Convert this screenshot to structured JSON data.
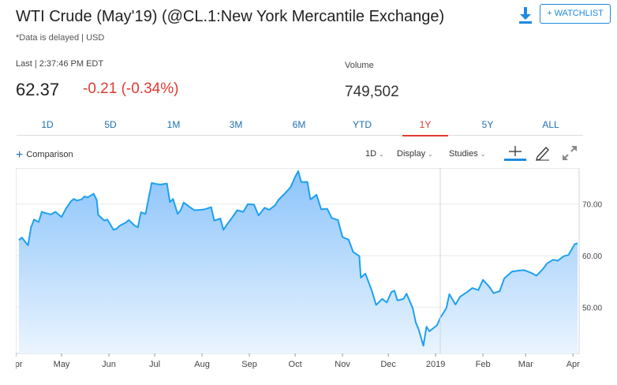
{
  "header": {
    "title": "WTI Crude (May'19) (@CL.1:New York Mercantile Exchange)",
    "subtitle": "*Data is delayed | USD",
    "watchlist_label": "+ WATCHLIST",
    "download_icon": "download-icon"
  },
  "quote": {
    "last_label": "Last | 2:37:46 PM EDT",
    "last_price": "62.37",
    "change": "-0.21 (-0.34%)",
    "volume_label": "Volume",
    "volume": "749,502"
  },
  "colors": {
    "accent": "#1f8ae0",
    "negative": "#e03a33",
    "line": "#1ea0f0",
    "fill_top": "#8cc4fb"
  },
  "range_tabs": [
    "1D",
    "5D",
    "1M",
    "3M",
    "6M",
    "YTD",
    "1Y",
    "5Y",
    "ALL"
  ],
  "active_tab": "1Y",
  "toolbar": {
    "comparison_label": "Comparison",
    "interval_label": "1D",
    "display_label": "Display",
    "studies_label": "Studies",
    "icons": [
      "crosshair-icon",
      "draw-pencil-icon",
      "expand-icon"
    ]
  },
  "chart_data": {
    "type": "area",
    "title": "",
    "xlabel": "",
    "ylabel": "",
    "ylim": [
      41,
      77
    ],
    "yticks": [
      "70.00",
      "60.00",
      "50.00"
    ],
    "ytick_values": [
      70,
      60,
      50
    ],
    "xticks": [
      "Apr",
      "May",
      "Jun",
      "Jul",
      "Aug",
      "Sep",
      "Oct",
      "Nov",
      "Dec",
      "2019",
      "Feb",
      "Mar",
      "Apr"
    ],
    "grid": true,
    "legend": "none",
    "series": [
      {
        "x": [
          "2018-04-03",
          "2018-04-05",
          "2018-04-09",
          "2018-04-11",
          "2018-04-13",
          "2018-04-16",
          "2018-04-18",
          "2018-04-20",
          "2018-04-24",
          "2018-04-27",
          "2018-05-01",
          "2018-05-04",
          "2018-05-07",
          "2018-05-09",
          "2018-05-11",
          "2018-05-14",
          "2018-05-16",
          "2018-05-18",
          "2018-05-22",
          "2018-05-24",
          "2018-05-25",
          "2018-05-29",
          "2018-05-31",
          "2018-06-04",
          "2018-06-06",
          "2018-06-08",
          "2018-06-12",
          "2018-06-14",
          "2018-06-18",
          "2018-06-20",
          "2018-06-22",
          "2018-06-25",
          "2018-06-29",
          "2018-07-02",
          "2018-07-05",
          "2018-07-09",
          "2018-07-11",
          "2018-07-13",
          "2018-07-16",
          "2018-07-18",
          "2018-07-20",
          "2018-07-24",
          "2018-07-27",
          "2018-07-31",
          "2018-08-03",
          "2018-08-07",
          "2018-08-09",
          "2018-08-13",
          "2018-08-15",
          "2018-08-17",
          "2018-08-21",
          "2018-08-24",
          "2018-08-28",
          "2018-08-31",
          "2018-09-04",
          "2018-09-07",
          "2018-09-11",
          "2018-09-14",
          "2018-09-18",
          "2018-09-20",
          "2018-09-25",
          "2018-09-28",
          "2018-10-01",
          "2018-10-03",
          "2018-10-05",
          "2018-10-09",
          "2018-10-11",
          "2018-10-15",
          "2018-10-18",
          "2018-10-22",
          "2018-10-25",
          "2018-10-29",
          "2018-11-01",
          "2018-11-05",
          "2018-11-08",
          "2018-11-12",
          "2018-11-13",
          "2018-11-16",
          "2018-11-20",
          "2018-11-23",
          "2018-11-27",
          "2018-11-30",
          "2018-12-03",
          "2018-12-05",
          "2018-12-07",
          "2018-12-11",
          "2018-12-13",
          "2018-12-17",
          "2018-12-19",
          "2018-12-21",
          "2018-12-24",
          "2018-12-26",
          "2018-12-28",
          "2019-01-02",
          "2019-01-04",
          "2019-01-08",
          "2019-01-10",
          "2019-01-14",
          "2019-01-17",
          "2019-01-22",
          "2019-01-25",
          "2019-01-29",
          "2019-02-01",
          "2019-02-05",
          "2019-02-08",
          "2019-02-12",
          "2019-02-15",
          "2019-02-20",
          "2019-02-25",
          "2019-02-28",
          "2019-03-05",
          "2019-03-08",
          "2019-03-12",
          "2019-03-15",
          "2019-03-19",
          "2019-03-22",
          "2019-03-26",
          "2019-03-29",
          "2019-04-02",
          "2019-04-04"
        ],
        "values": [
          63.0,
          63.5,
          62.0,
          65.5,
          67.0,
          66.5,
          68.5,
          68.3,
          68.0,
          68.5,
          67.5,
          69.2,
          70.5,
          71.0,
          70.7,
          70.9,
          71.5,
          71.3,
          72.0,
          70.8,
          67.9,
          66.8,
          67.0,
          65.0,
          65.2,
          65.8,
          66.4,
          66.9,
          65.8,
          65.5,
          68.4,
          68.1,
          74.1,
          73.9,
          73.8,
          74.0,
          70.4,
          71.0,
          68.1,
          68.8,
          70.3,
          69.4,
          68.8,
          68.9,
          69.0,
          69.4,
          66.8,
          67.2,
          65.0,
          65.9,
          67.5,
          68.8,
          68.5,
          70.0,
          69.9,
          67.8,
          69.3,
          68.9,
          69.8,
          70.8,
          72.3,
          73.3,
          75.3,
          76.4,
          74.3,
          74.3,
          70.9,
          71.8,
          69.0,
          69.1,
          67.3,
          66.9,
          63.6,
          63.1,
          60.7,
          59.9,
          55.7,
          56.5,
          53.4,
          50.4,
          51.6,
          50.9,
          52.9,
          53.2,
          51.3,
          51.6,
          52.6,
          49.8,
          47.0,
          45.6,
          42.5,
          46.2,
          45.3,
          46.5,
          47.9,
          49.8,
          52.5,
          50.5,
          52.0,
          53.0,
          53.7,
          53.3,
          55.3,
          54.0,
          52.7,
          53.1,
          55.6,
          56.9,
          57.1,
          57.2,
          56.6,
          56.1,
          57.3,
          58.5,
          59.2,
          59.0,
          59.9,
          60.1,
          62.2,
          62.4
        ]
      }
    ]
  }
}
